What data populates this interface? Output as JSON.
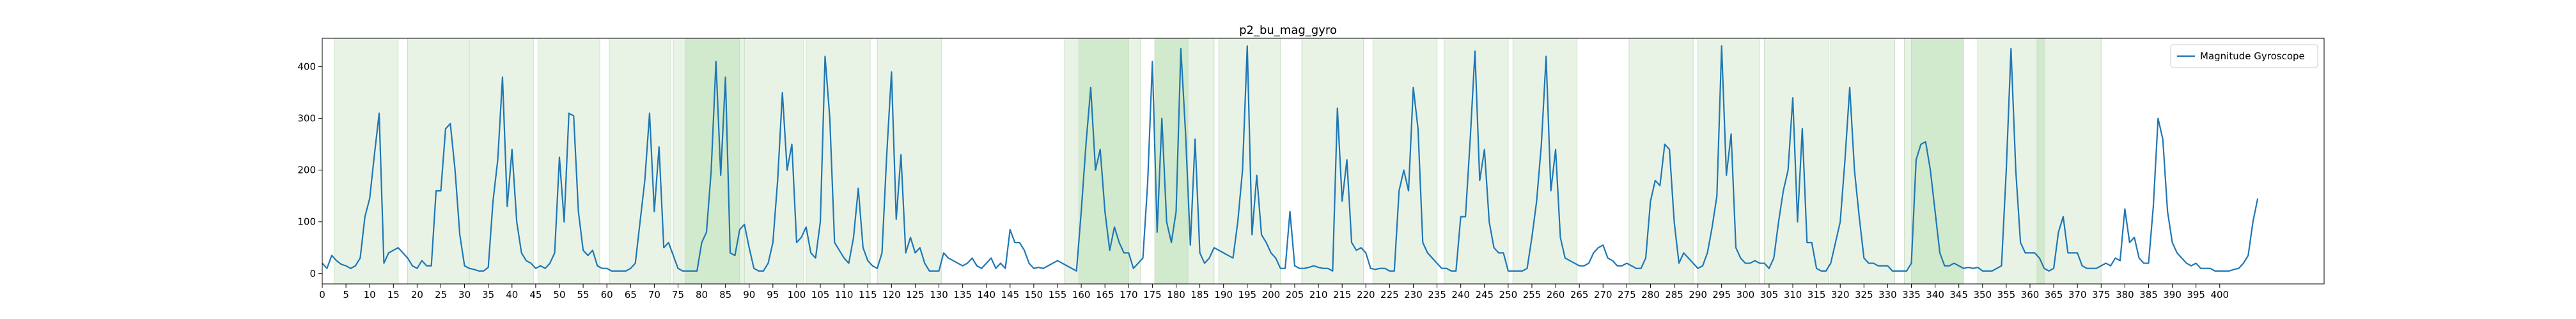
{
  "chart_data": {
    "type": "line",
    "title": "p2_bu_mag_gyro",
    "xlabel": "",
    "ylabel": "",
    "xlim": [
      0,
      422
    ],
    "ylim": [
      -20,
      455
    ],
    "xticks": [
      0,
      5,
      10,
      15,
      20,
      25,
      30,
      35,
      40,
      45,
      50,
      55,
      60,
      65,
      70,
      75,
      80,
      85,
      90,
      95,
      100,
      105,
      110,
      115,
      120,
      125,
      130,
      135,
      140,
      145,
      150,
      155,
      160,
      165,
      170,
      175,
      180,
      185,
      190,
      195,
      200,
      205,
      210,
      215,
      220,
      225,
      230,
      235,
      240,
      245,
      250,
      255,
      260,
      265,
      270,
      275,
      280,
      285,
      290,
      295,
      300,
      305,
      310,
      315,
      320,
      325,
      330,
      335,
      340,
      345,
      350,
      355,
      360,
      365,
      370,
      375,
      380,
      385,
      390,
      395,
      400
    ],
    "yticks": [
      0,
      100,
      200,
      300,
      400
    ],
    "grid": false,
    "legend": {
      "placement": "top-right",
      "entries": [
        "Magnitude Gyroscope"
      ]
    },
    "colors": {
      "line": "#1f77b4",
      "span_light": "#e8f3e6",
      "span_dark": "#d1e9cc",
      "span_edge": "#c9dfc4"
    },
    "highlight_spans": [
      {
        "x0": 2.5,
        "x1": 16,
        "shade": "light"
      },
      {
        "x0": 18,
        "x1": 31,
        "shade": "light"
      },
      {
        "x0": 31,
        "x1": 44.5,
        "shade": "light"
      },
      {
        "x0": 45.5,
        "x1": 58.5,
        "shade": "light"
      },
      {
        "x0": 60.5,
        "x1": 73.5,
        "shade": "light"
      },
      {
        "x0": 74,
        "x1": 76.5,
        "shade": "light"
      },
      {
        "x0": 76.5,
        "x1": 88,
        "shade": "dark"
      },
      {
        "x0": 88,
        "x1": 89,
        "shade": "light"
      },
      {
        "x0": 89,
        "x1": 101.5,
        "shade": "light"
      },
      {
        "x0": 102,
        "x1": 115.5,
        "shade": "light"
      },
      {
        "x0": 117,
        "x1": 130.5,
        "shade": "light"
      },
      {
        "x0": 156.5,
        "x1": 159.5,
        "shade": "light"
      },
      {
        "x0": 159.5,
        "x1": 170,
        "shade": "dark"
      },
      {
        "x0": 170,
        "x1": 172.5,
        "shade": "light"
      },
      {
        "x0": 175.5,
        "x1": 182.5,
        "shade": "dark"
      },
      {
        "x0": 182.5,
        "x1": 188,
        "shade": "light"
      },
      {
        "x0": 189,
        "x1": 202,
        "shade": "light"
      },
      {
        "x0": 206.5,
        "x1": 219.5,
        "shade": "light"
      },
      {
        "x0": 221.5,
        "x1": 235,
        "shade": "light"
      },
      {
        "x0": 236.5,
        "x1": 250,
        "shade": "light"
      },
      {
        "x0": 251,
        "x1": 264.5,
        "shade": "light"
      },
      {
        "x0": 275.5,
        "x1": 289,
        "shade": "light"
      },
      {
        "x0": 290,
        "x1": 303,
        "shade": "light"
      },
      {
        "x0": 304,
        "x1": 317.5,
        "shade": "light"
      },
      {
        "x0": 318,
        "x1": 331.5,
        "shade": "light"
      },
      {
        "x0": 333.5,
        "x1": 335,
        "shade": "light"
      },
      {
        "x0": 335,
        "x1": 346,
        "shade": "dark"
      },
      {
        "x0": 349,
        "x1": 361.5,
        "shade": "light"
      },
      {
        "x0": 361.5,
        "x1": 363,
        "shade": "dark"
      },
      {
        "x0": 363,
        "x1": 375,
        "shade": "light"
      }
    ],
    "series": [
      {
        "name": "Magnitude Gyroscope",
        "x_start": 0,
        "values": [
          20,
          10,
          35,
          25,
          18,
          15,
          10,
          15,
          30,
          110,
          145,
          230,
          310,
          20,
          40,
          45,
          50,
          40,
          30,
          15,
          10,
          25,
          15,
          15,
          160,
          160,
          280,
          290,
          200,
          75,
          15,
          10,
          8,
          5,
          5,
          12,
          140,
          220,
          380,
          130,
          240,
          100,
          40,
          25,
          20,
          10,
          15,
          10,
          20,
          40,
          225,
          100,
          310,
          305,
          120,
          45,
          35,
          45,
          15,
          10,
          10,
          5,
          5,
          5,
          5,
          10,
          20,
          100,
          180,
          310,
          120,
          245,
          50,
          60,
          35,
          10,
          5,
          5,
          5,
          5,
          60,
          80,
          200,
          410,
          190,
          380,
          40,
          35,
          85,
          95,
          50,
          10,
          5,
          5,
          20,
          60,
          180,
          350,
          200,
          250,
          60,
          70,
          90,
          40,
          30,
          100,
          420,
          300,
          60,
          45,
          30,
          20,
          70,
          165,
          50,
          25,
          15,
          10,
          40,
          230,
          390,
          105,
          230,
          40,
          70,
          40,
          50,
          20,
          5,
          5,
          5,
          40,
          30,
          25,
          20,
          15,
          20,
          30,
          15,
          10,
          20,
          30,
          10,
          20,
          10,
          85,
          60,
          60,
          45,
          20,
          10,
          12,
          10,
          15,
          20,
          25,
          20,
          15,
          10,
          5,
          120,
          250,
          360,
          200,
          240,
          120,
          45,
          90,
          60,
          40,
          40,
          10,
          20,
          30,
          175,
          410,
          80,
          300,
          100,
          60,
          120,
          435,
          270,
          55,
          260,
          40,
          20,
          30,
          50,
          45,
          40,
          35,
          30,
          100,
          200,
          440,
          75,
          190,
          75,
          60,
          40,
          30,
          10,
          10,
          120,
          15,
          10,
          10,
          12,
          15,
          12,
          10,
          10,
          5,
          320,
          140,
          220,
          60,
          45,
          50,
          40,
          10,
          8,
          10,
          10,
          5,
          5,
          160,
          200,
          160,
          360,
          280,
          60,
          40,
          30,
          20,
          10,
          10,
          5,
          5,
          110,
          110,
          260,
          430,
          180,
          240,
          100,
          50,
          40,
          40,
          5,
          5,
          5,
          5,
          10,
          70,
          140,
          250,
          420,
          160,
          240,
          70,
          30,
          25,
          20,
          15,
          15,
          20,
          40,
          50,
          55,
          30,
          25,
          15,
          15,
          20,
          15,
          10,
          10,
          30,
          140,
          180,
          170,
          250,
          240,
          100,
          20,
          40,
          30,
          20,
          10,
          15,
          40,
          90,
          150,
          440,
          190,
          270,
          50,
          30,
          20,
          20,
          25,
          20,
          20,
          10,
          30,
          100,
          160,
          200,
          340,
          100,
          280,
          60,
          60,
          10,
          5,
          5,
          20,
          60,
          100,
          220,
          360,
          200,
          110,
          30,
          20,
          20,
          15,
          15,
          15,
          5,
          5,
          5,
          5,
          20,
          220,
          250,
          255,
          200,
          120,
          40,
          15,
          15,
          20,
          15,
          10,
          12,
          10,
          12,
          5,
          5,
          5,
          10,
          15,
          200,
          435,
          200,
          60,
          40,
          40,
          40,
          30,
          10,
          5,
          10,
          80,
          110,
          40,
          40,
          40,
          15,
          10,
          10,
          10,
          15,
          20,
          15,
          30,
          25,
          125,
          60,
          70,
          30,
          20,
          20,
          130,
          300,
          260,
          120,
          60,
          40,
          30,
          20,
          15,
          20,
          10,
          10,
          10,
          5,
          5,
          5,
          5,
          8,
          10,
          20,
          35,
          100,
          145
        ]
      }
    ]
  }
}
